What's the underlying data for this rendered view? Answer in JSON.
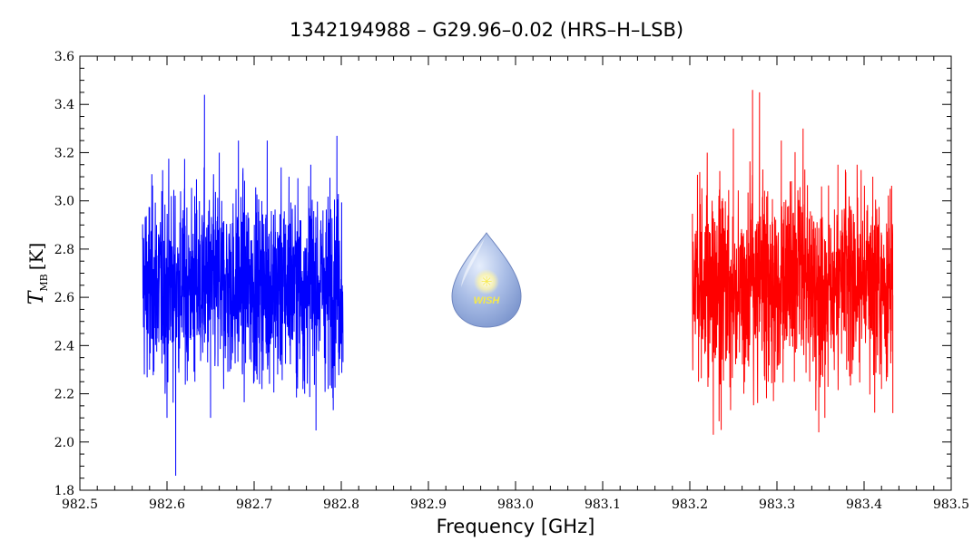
{
  "chart_data": {
    "type": "line",
    "title": "1342194988 – G29.96–0.02 (HRS–H–LSB)",
    "xlabel": "Frequency [GHz]",
    "ylabel": {
      "main": "T",
      "sub": "MB",
      "unit": "[K]"
    },
    "xlim": [
      982.5,
      983.5
    ],
    "ylim": [
      1.8,
      3.6
    ],
    "x_ticks": [
      "982.5",
      "982.6",
      "982.7",
      "982.8",
      "982.9",
      "983.0",
      "983.1",
      "983.2",
      "983.3",
      "983.4",
      "983.5"
    ],
    "y_ticks": [
      "1.8",
      "2.0",
      "2.2",
      "2.4",
      "2.6",
      "2.8",
      "3.0",
      "3.2",
      "3.4",
      "3.6"
    ],
    "grid": false,
    "series": [
      {
        "color": "#0000ff",
        "x_range": [
          982.572,
          982.802
        ],
        "mean": 2.65,
        "min": 1.86,
        "max": 3.44,
        "samples": [
          [
            982.572,
            2.84
          ],
          [
            982.58,
            2.3
          ],
          [
            982.588,
            2.9
          ],
          [
            982.6,
            2.1
          ],
          [
            982.605,
            3.02
          ],
          [
            982.61,
            1.86
          ],
          [
            982.62,
            3.05
          ],
          [
            982.632,
            2.25
          ],
          [
            982.643,
            3.44
          ],
          [
            982.65,
            2.1
          ],
          [
            982.66,
            3.2
          ],
          [
            982.665,
            2.22
          ],
          [
            982.682,
            3.25
          ],
          [
            982.7,
            2.25
          ],
          [
            982.715,
            3.25
          ],
          [
            982.727,
            2.28
          ],
          [
            982.74,
            3.1
          ],
          [
            982.758,
            2.2
          ],
          [
            982.765,
            3.15
          ],
          [
            982.785,
            2.22
          ],
          [
            982.795,
            3.27
          ],
          [
            982.802,
            2.42
          ]
        ]
      },
      {
        "color": "#ff0000",
        "x_range": [
          983.203,
          983.433
        ],
        "mean": 2.66,
        "min": 2.03,
        "max": 3.46,
        "samples": [
          [
            983.203,
            2.85
          ],
          [
            983.21,
            2.25
          ],
          [
            983.22,
            3.2
          ],
          [
            983.227,
            2.03
          ],
          [
            983.236,
            2.05
          ],
          [
            983.25,
            3.3
          ],
          [
            983.262,
            2.2
          ],
          [
            983.272,
            3.46
          ],
          [
            983.28,
            3.45
          ],
          [
            983.29,
            2.25
          ],
          [
            983.305,
            3.25
          ],
          [
            983.32,
            2.25
          ],
          [
            983.33,
            3.3
          ],
          [
            983.348,
            2.04
          ],
          [
            983.355,
            2.1
          ],
          [
            983.37,
            3.15
          ],
          [
            983.38,
            2.3
          ],
          [
            983.392,
            3.15
          ],
          [
            983.41,
            3.1
          ],
          [
            983.42,
            2.22
          ],
          [
            983.43,
            3.05
          ],
          [
            983.433,
            2.12
          ]
        ]
      }
    ],
    "logo_text": "WISH"
  }
}
